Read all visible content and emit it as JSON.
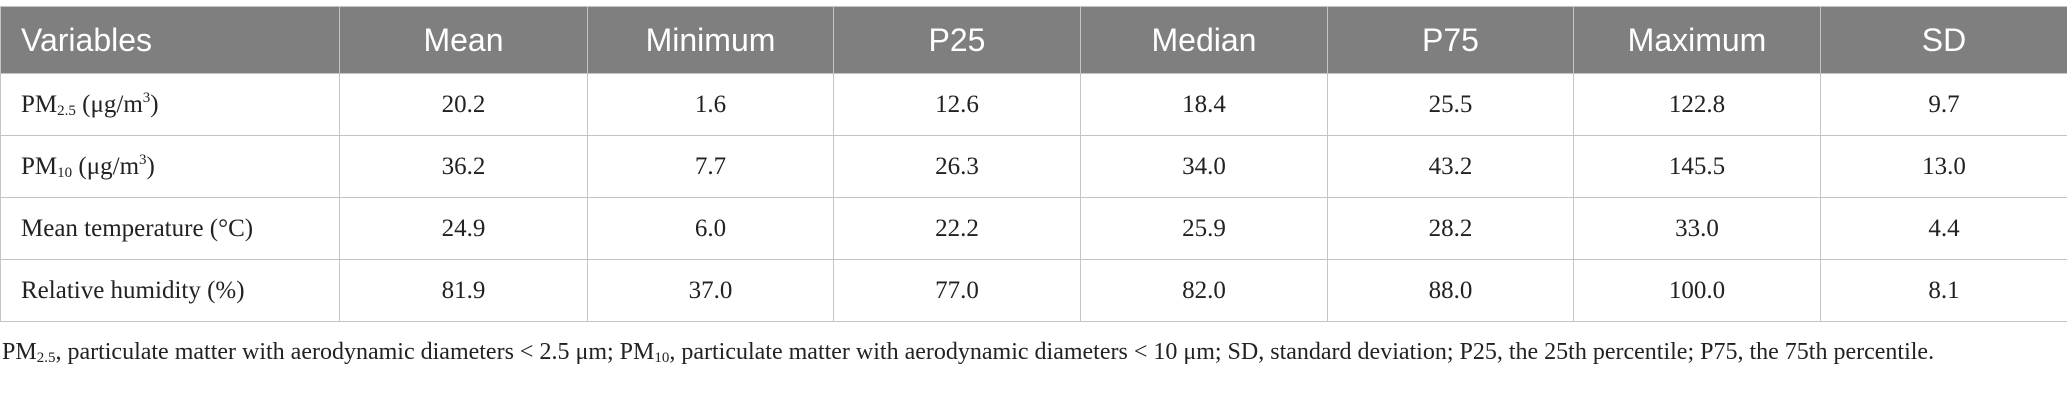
{
  "table": {
    "header": [
      "Variables",
      "Mean",
      "Minimum",
      "P25",
      "Median",
      "P75",
      "Maximum",
      "SD"
    ],
    "rows": [
      {
        "label": [
          "PM",
          "2.5",
          " (μg/m",
          "3",
          ")"
        ],
        "cells": [
          "20.2",
          "1.6",
          "12.6",
          "18.4",
          "25.5",
          "122.8",
          "9.7"
        ]
      },
      {
        "label": [
          "PM",
          "10",
          " (μg/m",
          "3",
          ")"
        ],
        "cells": [
          "36.2",
          "7.7",
          "26.3",
          "34.0",
          "43.2",
          "145.5",
          "13.0"
        ]
      },
      {
        "label": [
          "Mean temperature (°C)"
        ],
        "cells": [
          "24.9",
          "6.0",
          "22.2",
          "25.9",
          "28.2",
          "33.0",
          "4.4"
        ]
      },
      {
        "label": [
          "Relative humidity (%)"
        ],
        "cells": [
          "81.9",
          "37.0",
          "77.0",
          "82.0",
          "88.0",
          "100.0",
          "8.1"
        ]
      }
    ],
    "footnote": [
      "PM",
      "2.5",
      ", particulate matter with aerodynamic diameters < 2.5 μm; PM",
      "10",
      ", particulate matter with aerodynamic diameters < 10 μm; SD, standard deviation; P25, the 25th percentile; P75, the 75th percentile."
    ]
  }
}
